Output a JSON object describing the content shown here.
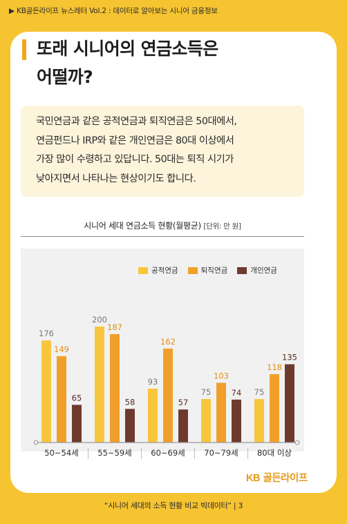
{
  "header": {
    "breadcrumb": "▶ KB골든라이프 뉴스레터 Vol.2 : 데이터로 알아보는 시니어 금융정보"
  },
  "title": {
    "line1": "또래 시니어의 연금소득은",
    "line2": "어떨까?"
  },
  "info": {
    "lines": [
      "국민연금과 같은 공적연금과 퇴직연금은 50대에서,",
      "연금펀드나 IRP와 같은 개인연금은 80대 이상에서",
      "가장 많이 수령하고 있답니다. 50대는 퇴직 시기가",
      "낮아지면서 나타나는 현상이기도 합니다."
    ]
  },
  "chart_data": {
    "type": "bar",
    "title": "시니어 세대 연금소득 현황(월평균)",
    "unit_label": "[단위: 만 원]",
    "categories": [
      "50~54세",
      "55~59세",
      "60~69세",
      "70~79세",
      "80대 이상"
    ],
    "series": [
      {
        "name": "공적연금",
        "values": [
          176,
          200,
          93,
          75,
          75
        ],
        "color": "#f8c63c",
        "label_color": "#777777"
      },
      {
        "name": "퇴직연금",
        "values": [
          149,
          187,
          162,
          103,
          118
        ],
        "color": "#f0a02a",
        "label_color": "#e38f12"
      },
      {
        "name": "개인연금",
        "values": [
          65,
          58,
          57,
          74,
          135
        ],
        "color": "#6e3a2e",
        "label_color": "#5a2a20"
      }
    ],
    "ylim": [
      0,
      200
    ],
    "legend": "top-right",
    "grid": false
  },
  "logo": {
    "kb": "KB",
    "text": " 골든라이프"
  },
  "footer": {
    "text": "“시니어 세대의 소득 현황 비교 빅데이터”   |   3"
  }
}
